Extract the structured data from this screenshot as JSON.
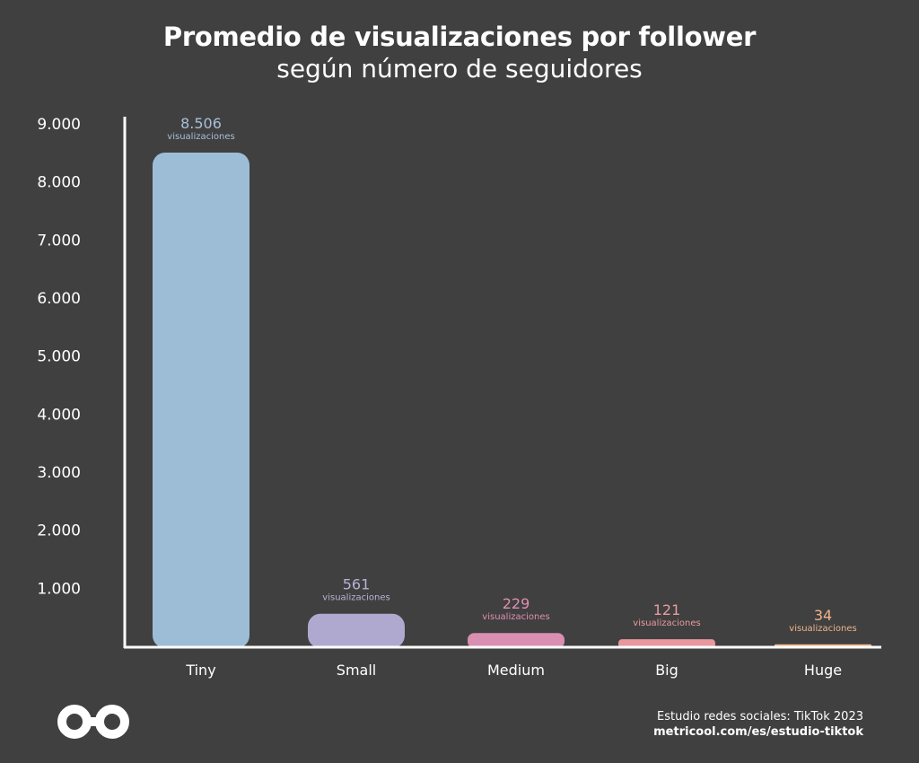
{
  "header": {
    "title": "Promedio de visualizaciones por follower",
    "subtitle": "según número de seguidores"
  },
  "chart_data": {
    "type": "bar",
    "categories": [
      "Tiny",
      "Small",
      "Medium",
      "Big",
      "Huge"
    ],
    "values": [
      8506,
      561,
      229,
      121,
      34
    ],
    "value_labels": [
      "8.506",
      "561",
      "229",
      "121",
      "34"
    ],
    "value_unit_label": "visualizaciones",
    "ylim": [
      0,
      9000
    ],
    "yticks": [
      1000,
      2000,
      3000,
      4000,
      5000,
      6000,
      7000,
      8000,
      9000
    ],
    "ytick_labels": [
      "1.000",
      "2.000",
      "3.000",
      "4.000",
      "5.000",
      "6.000",
      "7.000",
      "8.000",
      "9.000"
    ],
    "bar_colors": [
      "#9dbdd6",
      "#b0a9cf",
      "#d98fb2",
      "#e8979f",
      "#f0b48c"
    ],
    "label_colors": [
      "#a9bfd8",
      "#b9b2d4",
      "#e08fb0",
      "#eb9aa2",
      "#f0b48c"
    ],
    "grid": false,
    "legend": "none"
  },
  "footer": {
    "source": "Estudio redes sociales: TikTok 2023",
    "url": "metricool.com/es/estudio-tiktok"
  },
  "brand": {
    "logo_icon": "infinity-logo-icon",
    "color": "#ffffff"
  }
}
